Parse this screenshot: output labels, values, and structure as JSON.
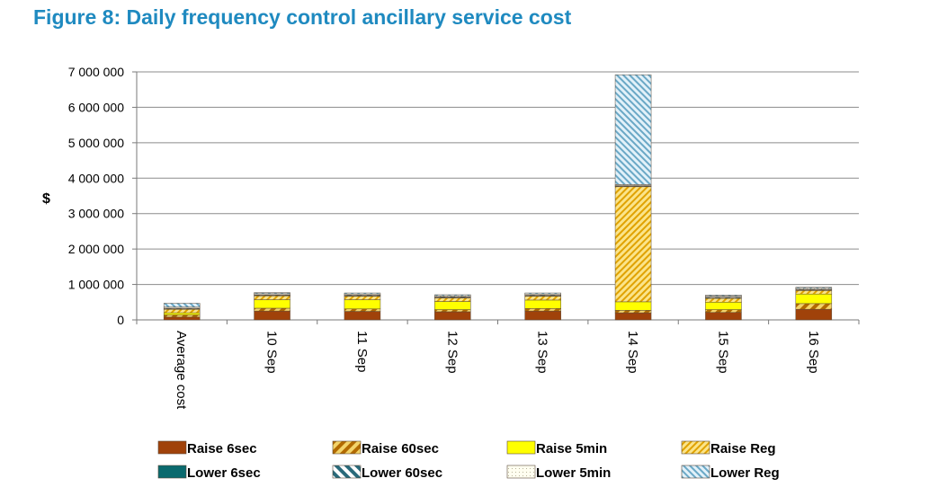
{
  "title": "Figure 8: Daily frequency control ancillary service cost",
  "chart_data": {
    "type": "bar",
    "stacked": true,
    "title": "Figure 8: Daily frequency control ancillary service cost",
    "xlabel": "",
    "ylabel": "$",
    "ylim": [
      0,
      7000000
    ],
    "yticks": [
      0,
      1000000,
      2000000,
      3000000,
      4000000,
      5000000,
      6000000,
      7000000
    ],
    "ytick_labels": [
      "0",
      "1 000 000",
      "2 000 000",
      "3 000 000",
      "4 000 000",
      "5 000 000",
      "6 000 000",
      "7 000 000"
    ],
    "grid": true,
    "legend_position": "bottom",
    "categories": [
      "Average cost",
      "10 Sep",
      "11 Sep",
      "12 Sep",
      "13 Sep",
      "14 Sep",
      "15 Sep",
      "16 Sep"
    ],
    "series": [
      {
        "name": "Raise 6sec",
        "color": "#a0420a",
        "pattern": "solid",
        "values": [
          80000,
          250000,
          240000,
          230000,
          250000,
          200000,
          210000,
          300000
        ]
      },
      {
        "name": "Raise 60sec",
        "color": "#d48a00",
        "pattern": "diagonal-thick",
        "values": [
          60000,
          80000,
          70000,
          60000,
          70000,
          70000,
          80000,
          160000
        ]
      },
      {
        "name": "Raise 5min",
        "color": "#ffff00",
        "pattern": "solid",
        "values": [
          60000,
          240000,
          260000,
          230000,
          240000,
          240000,
          210000,
          270000
        ]
      },
      {
        "name": "Raise Reg",
        "color": "#f5c400",
        "pattern": "diagonal",
        "values": [
          100000,
          110000,
          100000,
          100000,
          110000,
          3250000,
          110000,
          100000
        ]
      },
      {
        "name": "Lower 6sec",
        "color": "#0a6a6e",
        "pattern": "solid",
        "values": [
          10000,
          10000,
          10000,
          10000,
          10000,
          10000,
          10000,
          10000
        ]
      },
      {
        "name": "Lower 60sec",
        "color": "#2a8a9a",
        "pattern": "diagonal-thick-rev",
        "values": [
          20000,
          20000,
          20000,
          20000,
          20000,
          20000,
          20000,
          20000
        ]
      },
      {
        "name": "Lower 5min",
        "color": "#fffde0",
        "pattern": "dots",
        "values": [
          30000,
          30000,
          30000,
          30000,
          30000,
          30000,
          30000,
          30000
        ]
      },
      {
        "name": "Lower Reg",
        "color": "#a8d4ec",
        "pattern": "diagonal-rev",
        "values": [
          110000,
          30000,
          30000,
          30000,
          30000,
          3100000,
          30000,
          30000
        ]
      }
    ]
  }
}
